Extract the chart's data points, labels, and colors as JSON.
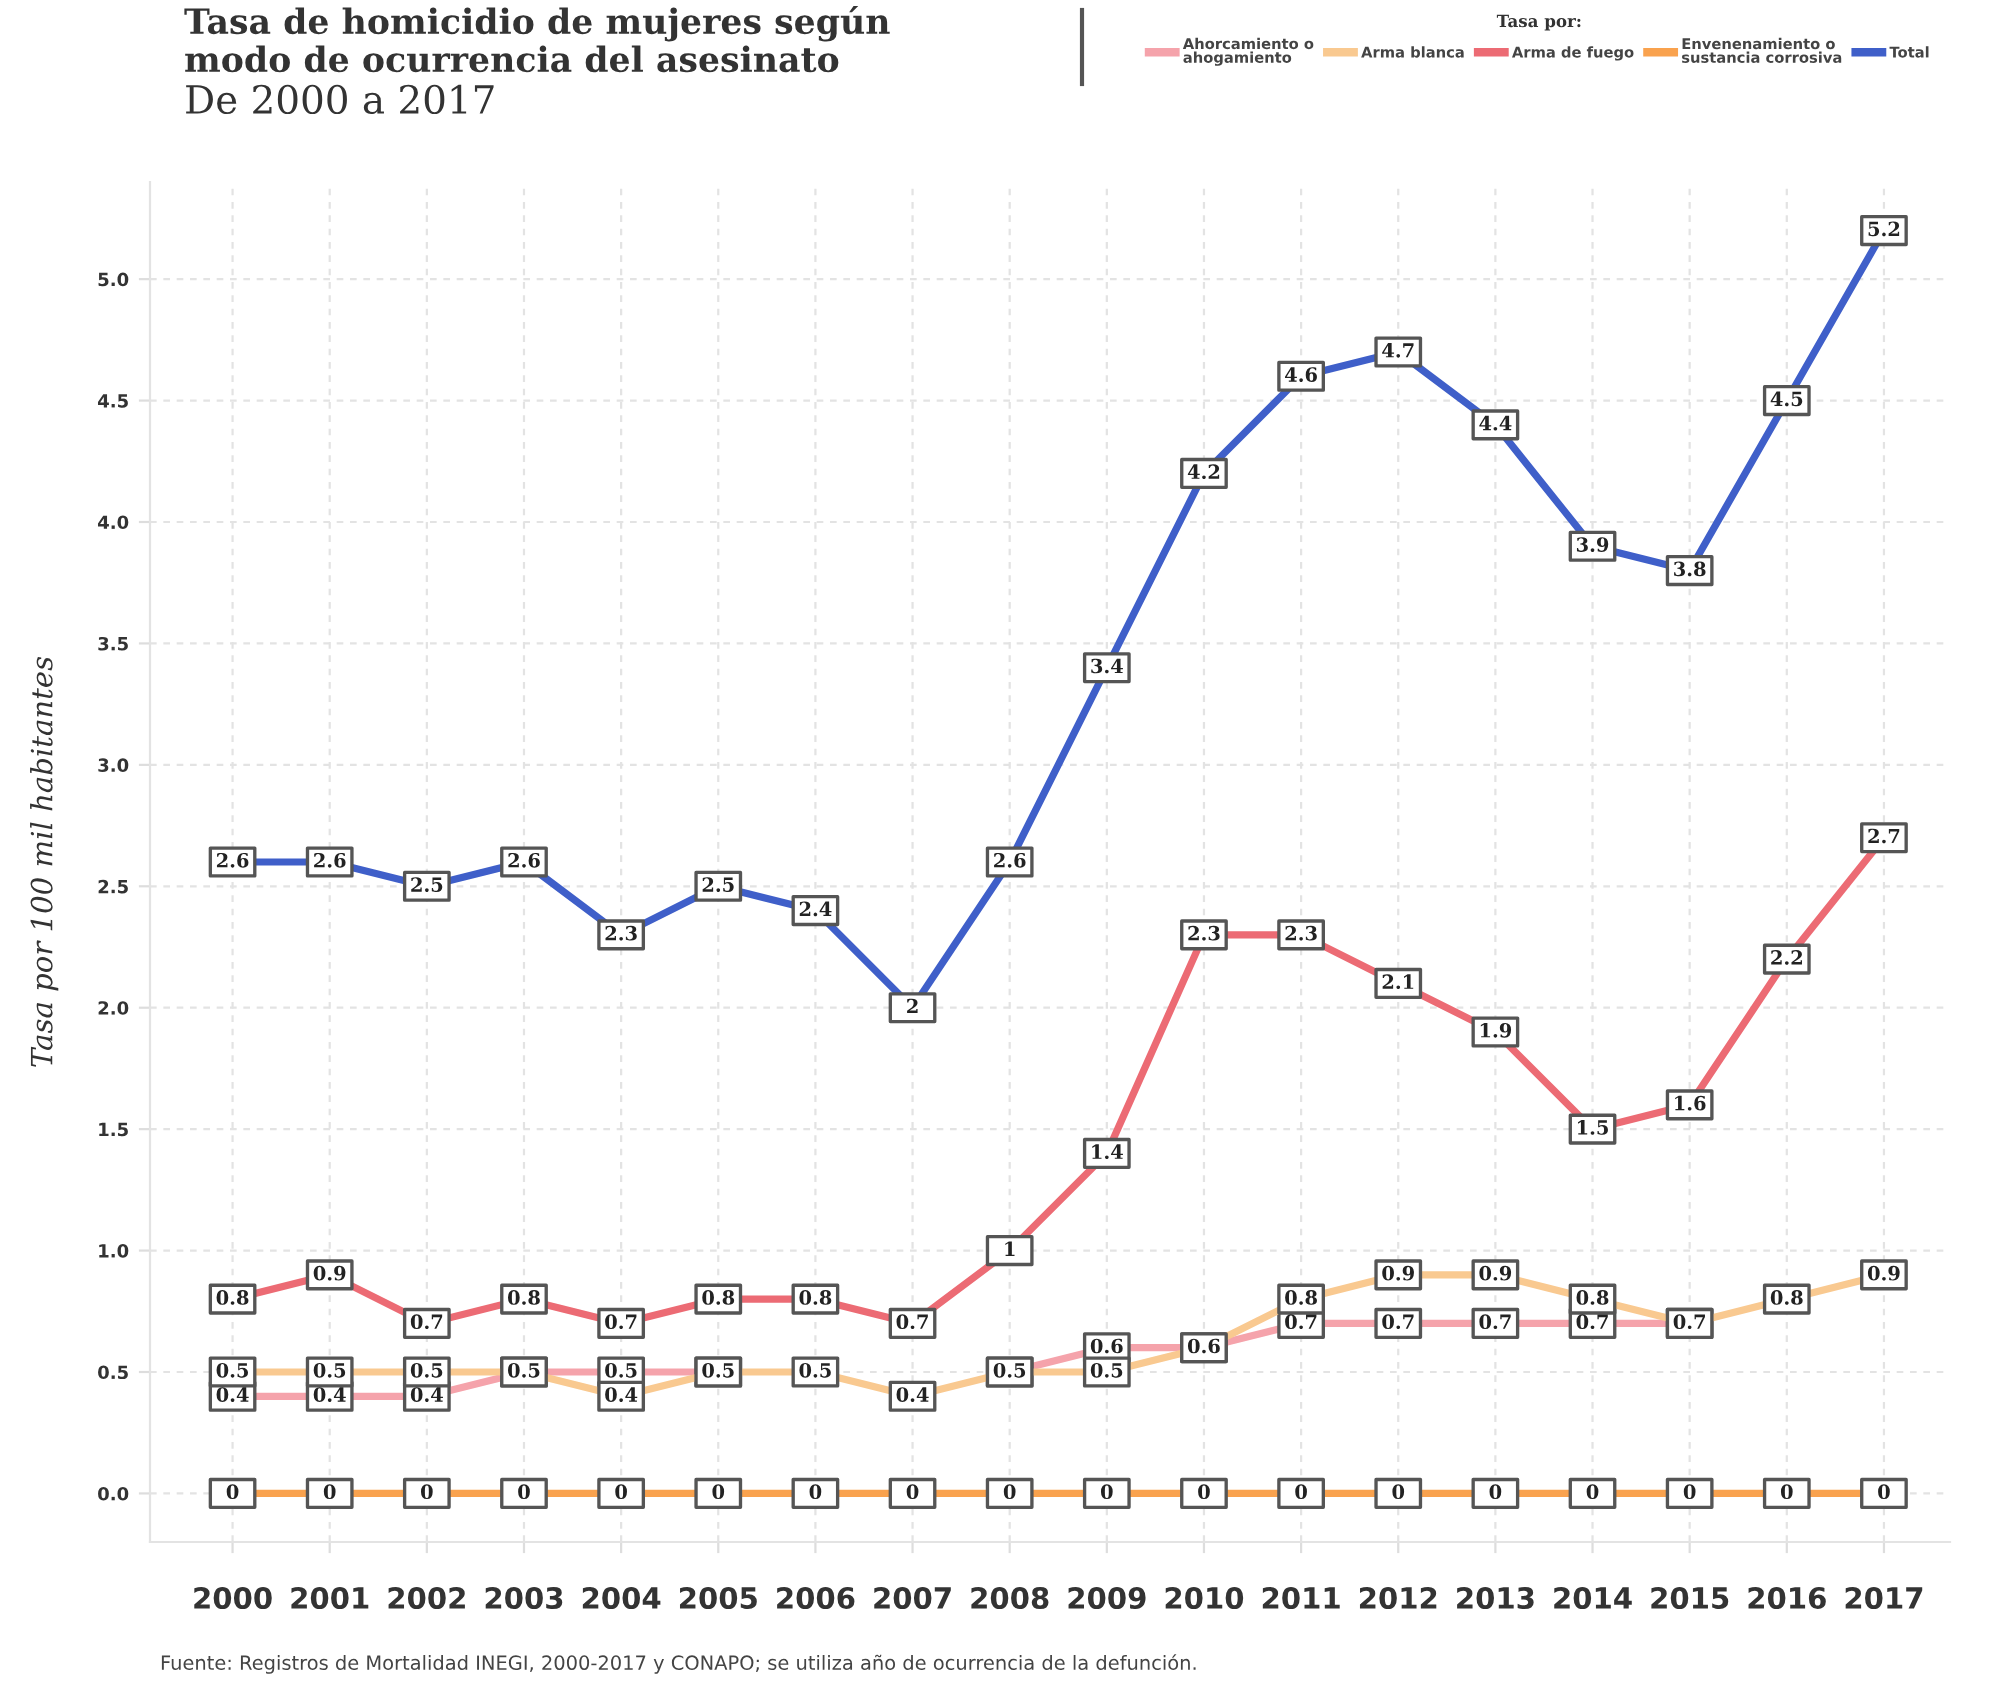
{
  "chart_data": {
    "type": "line",
    "title": "Tasa de homicidio de mujeres según\nmodo de ocurrencia del asesinato",
    "subtitle": "De 2000 a 2017",
    "ylabel": "Tasa por 100 mil habitantes",
    "legend_title": "Tasa por:",
    "annotations": [
      "Fuente: Registros de Mortalidad INEGI, 2000-2017 y CONAPO; se utiliza año de ocurrencia de la defunción."
    ],
    "categories": [
      "2000",
      "2001",
      "2002",
      "2003",
      "2004",
      "2005",
      "2006",
      "2007",
      "2008",
      "2009",
      "2010",
      "2011",
      "2012",
      "2013",
      "2014",
      "2015",
      "2016",
      "2017"
    ],
    "series": [
      {
        "name": "Ahorcamiento o\nahogamiento",
        "color": "#f5a3ab",
        "values": [
          0.4,
          0.4,
          0.4,
          0.5,
          0.5,
          0.5,
          null,
          null,
          0.5,
          0.6,
          0.6,
          0.7,
          0.7,
          0.7,
          0.7,
          0.7,
          null,
          null
        ],
        "value_labels": [
          "0.4",
          "0.4",
          "0.4",
          null,
          "0.5",
          null,
          null,
          null,
          null,
          "0.6",
          null,
          "0.7",
          "0.7",
          "0.7",
          "0.7",
          null,
          null,
          null
        ]
      },
      {
        "name": "Arma blanca",
        "color": "#f9c990",
        "values": [
          0.5,
          0.5,
          0.5,
          0.5,
          0.4,
          0.5,
          0.5,
          0.4,
          0.5,
          0.5,
          0.6,
          0.8,
          0.9,
          0.9,
          0.8,
          0.7,
          0.8,
          0.9
        ],
        "value_labels": [
          "0.5",
          "0.5",
          "0.5",
          "0.5",
          "0.4",
          "0.5",
          "0.5",
          "0.4",
          "0.5",
          "0.5",
          "0.6",
          "0.8",
          "0.9",
          "0.9",
          "0.8",
          "0.7",
          "0.8",
          "0.9"
        ]
      },
      {
        "name": "Arma de fuego",
        "color": "#ec6b74",
        "values": [
          0.8,
          0.9,
          0.7,
          0.8,
          0.7,
          0.8,
          0.8,
          0.7,
          1,
          1.4,
          2.3,
          2.3,
          2.1,
          1.9,
          1.5,
          1.6,
          2.2,
          2.7
        ],
        "value_labels": [
          "0.8",
          "0.9",
          "0.7",
          "0.8",
          "0.7",
          "0.8",
          "0.8",
          "0.7",
          "1",
          "1.4",
          "2.3",
          "2.3",
          "2.1",
          "1.9",
          "1.5",
          "1.6",
          "2.2",
          "2.7"
        ]
      },
      {
        "name": "Envenenamiento o\nsustancia corrosiva",
        "color": "#f9a24e",
        "values": [
          0,
          0,
          0,
          0,
          0,
          0,
          0,
          0,
          0,
          0,
          0,
          0,
          0,
          0,
          0,
          0,
          0,
          0
        ],
        "value_labels": [
          "0",
          "0",
          "0",
          "0",
          "0",
          "0",
          "0",
          "0",
          "0",
          "0",
          "0",
          "0",
          "0",
          "0",
          "0",
          "0",
          "0",
          "0"
        ]
      },
      {
        "name": "Total",
        "color": "#3f5fc9",
        "values": [
          2.6,
          2.6,
          2.5,
          2.6,
          2.3,
          2.5,
          2.4,
          2,
          2.6,
          3.4,
          4.2,
          4.6,
          4.7,
          4.4,
          3.9,
          3.8,
          4.5,
          5.2
        ],
        "value_labels": [
          "2.6",
          "2.6",
          "2.5",
          "2.6",
          "2.3",
          "2.5",
          "2.4",
          "2",
          "2.6",
          "3.4",
          "4.2",
          "4.6",
          "4.7",
          "4.4",
          "3.9",
          "3.8",
          "4.5",
          "5.2"
        ]
      }
    ],
    "ylim": [
      -0.2,
      5.4
    ],
    "yticks": [
      {
        "value": 0,
        "label": "0.0"
      },
      {
        "value": 0.5,
        "label": "0.5"
      },
      {
        "value": 1,
        "label": "1.0"
      },
      {
        "value": 1.5,
        "label": "1.5"
      },
      {
        "value": 2,
        "label": "2.0"
      },
      {
        "value": 2.5,
        "label": "2.5"
      },
      {
        "value": 3,
        "label": "3.0"
      },
      {
        "value": 3.5,
        "label": "3.5"
      },
      {
        "value": 4,
        "label": "4.0"
      },
      {
        "value": 4.5,
        "label": "4.5"
      },
      {
        "value": 5,
        "label": "5.0"
      }
    ],
    "grid": true,
    "legend": "top right",
    "marker": "square",
    "line_style": "solid"
  }
}
